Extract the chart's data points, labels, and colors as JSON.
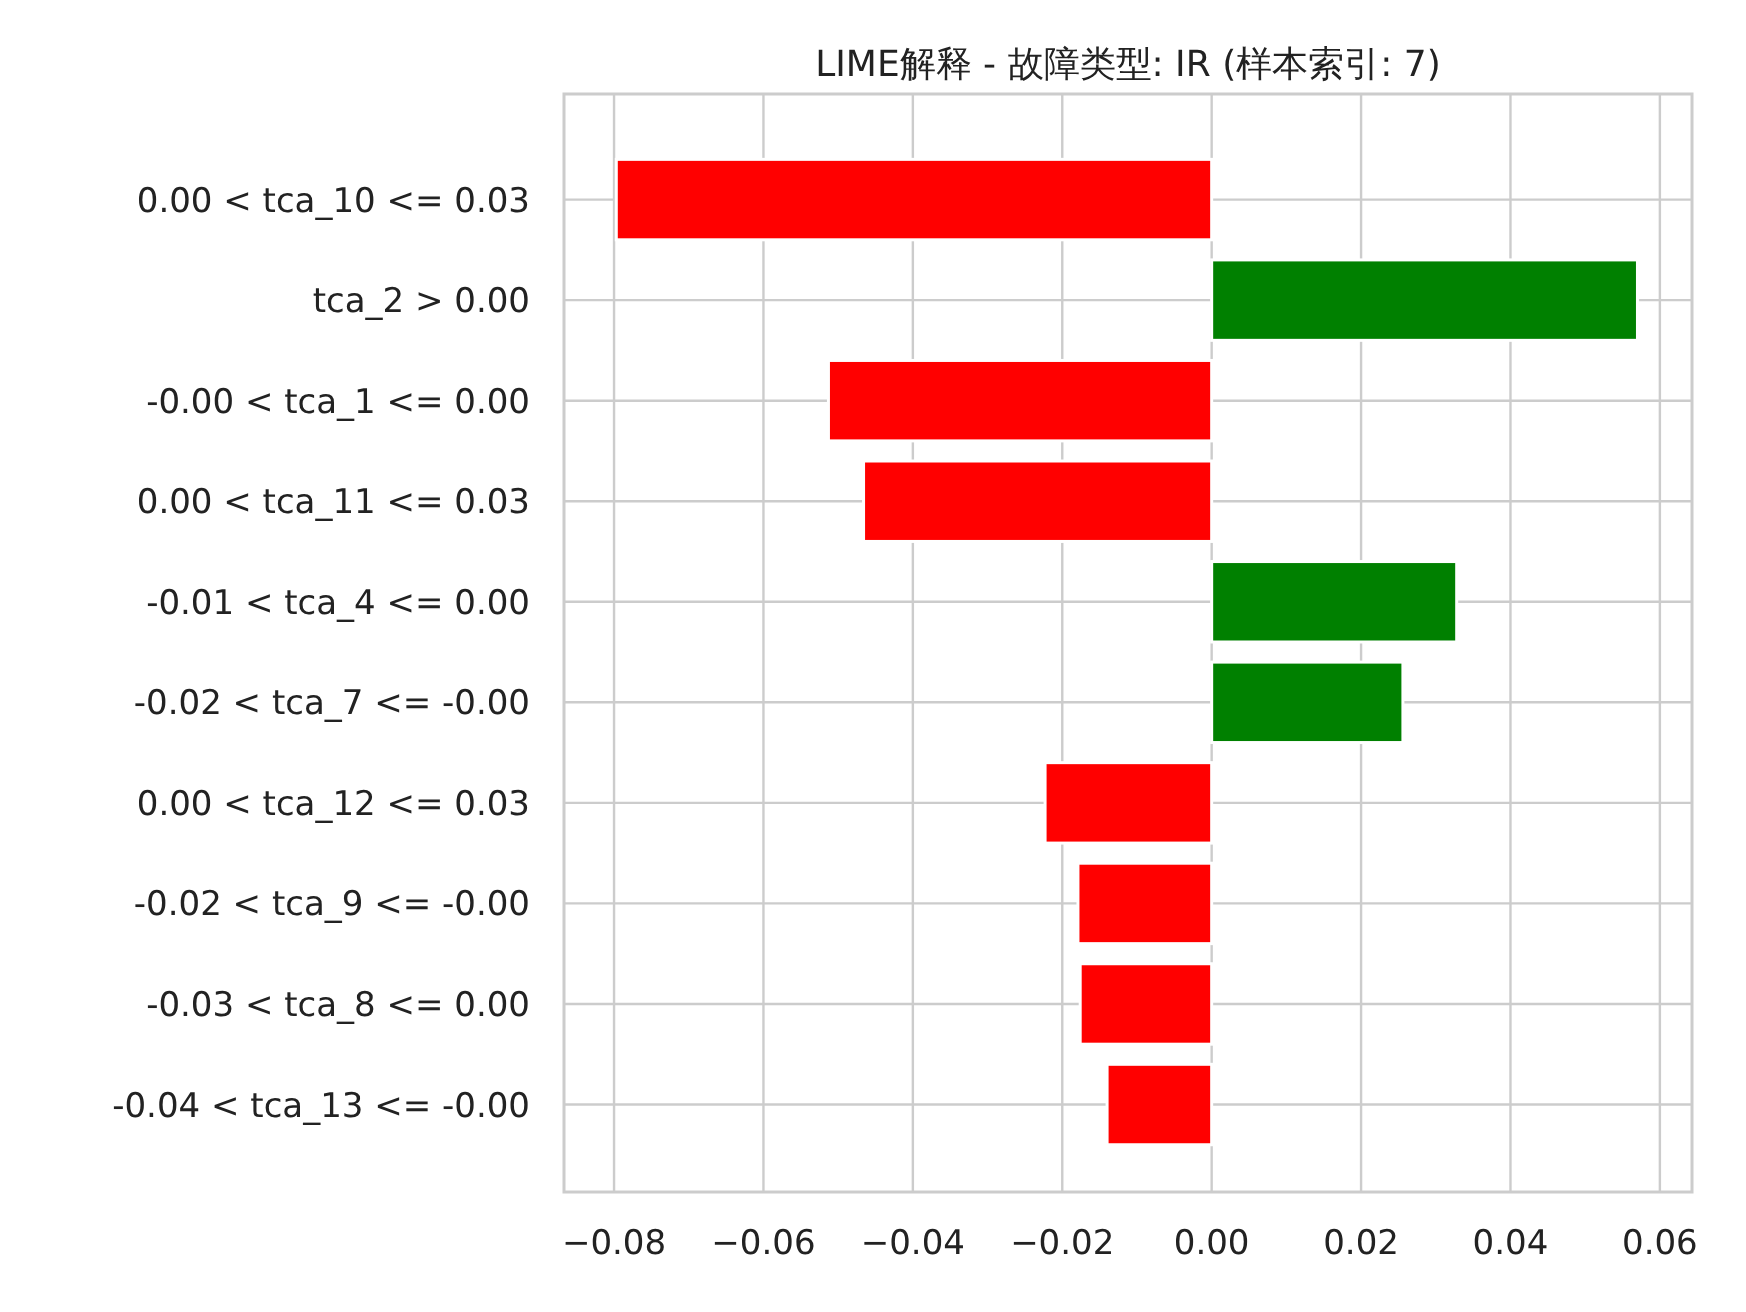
{
  "chart_data": {
    "type": "bar",
    "orientation": "horizontal",
    "title": "LIME解释 - 故障类型: IR (样本索引: 7)",
    "categories": [
      "0.00 < tca_10 <= 0.03",
      "tca_2 > 0.00",
      "-0.00 < tca_1 <= 0.00",
      "0.00 < tca_11 <= 0.03",
      "-0.01 < tca_4 <= 0.00",
      "-0.02 < tca_7 <= -0.00",
      "0.00 < tca_12 <= 0.03",
      "-0.02 < tca_9 <= -0.00",
      "-0.03 < tca_8 <= 0.00",
      "-0.04 < tca_13 <= -0.00"
    ],
    "values": [
      -0.0797,
      0.057,
      -0.0513,
      -0.0466,
      0.0328,
      0.0256,
      -0.0223,
      -0.0179,
      -0.0176,
      -0.014
    ],
    "colors": [
      "#ff0000",
      "#008000",
      "#ff0000",
      "#ff0000",
      "#008000",
      "#008000",
      "#ff0000",
      "#ff0000",
      "#ff0000",
      "#ff0000"
    ],
    "xlim": [
      -0.0867,
      0.0643
    ],
    "xticks": [
      {
        "value": -0.08,
        "label": "−0.08"
      },
      {
        "value": -0.06,
        "label": "−0.06"
      },
      {
        "value": -0.04,
        "label": "−0.04"
      },
      {
        "value": -0.02,
        "label": "−0.02"
      },
      {
        "value": 0,
        "label": "0.00"
      },
      {
        "value": 0.02,
        "label": "0.02"
      },
      {
        "value": 0.04,
        "label": "0.04"
      },
      {
        "value": 0.06,
        "label": "0.06"
      }
    ],
    "grid": true
  }
}
